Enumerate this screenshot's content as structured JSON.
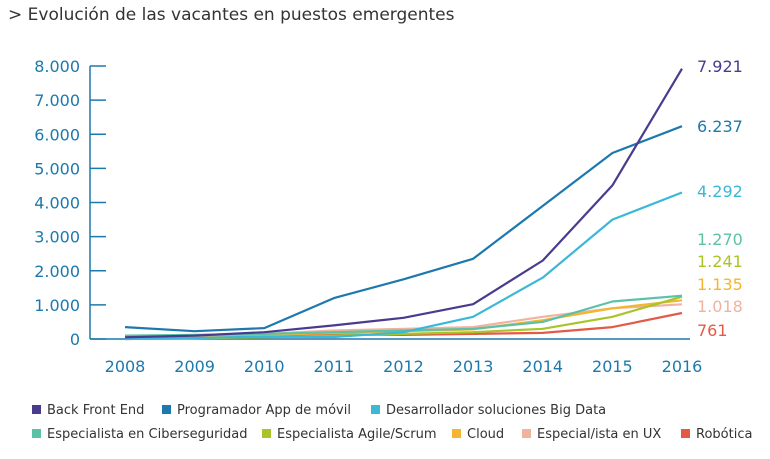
{
  "chart_data": {
    "type": "line",
    "title": "> Evolución de las vacantes en puestos emergentes",
    "x": [
      "2008",
      "2009",
      "2010",
      "2011",
      "2012",
      "2013",
      "2014",
      "2015",
      "2016"
    ],
    "ylim": [
      0,
      8000
    ],
    "yticks": [
      0,
      1000,
      2000,
      3000,
      4000,
      5000,
      6000,
      7000,
      8000
    ],
    "ytick_labels": [
      "0",
      "1.000",
      "2.000",
      "3.000",
      "4.000",
      "5.000",
      "6.000",
      "7.000",
      "8.000"
    ],
    "legend_position": "bottom",
    "series": [
      {
        "name": "Back Front End",
        "color": "#4a3b8f",
        "end_label": "7.921",
        "values": [
          50,
          100,
          200,
          400,
          620,
          1020,
          2300,
          4500,
          7921
        ]
      },
      {
        "name": "Programador App de móvil",
        "color": "#1d79ad",
        "end_label": "6.237",
        "values": [
          350,
          230,
          320,
          1200,
          1750,
          2350,
          3900,
          5450,
          6237
        ]
      },
      {
        "name": "Desarrollador soluciones Big Data",
        "color": "#3bb8d6",
        "end_label": "4.292",
        "values": [
          0,
          30,
          70,
          60,
          200,
          650,
          1800,
          3500,
          4292
        ]
      },
      {
        "name": "Especialista en Ciberseguridad",
        "color": "#5bc2a8",
        "end_label": "1.270",
        "values": [
          100,
          120,
          150,
          200,
          250,
          300,
          500,
          1100,
          1270
        ]
      },
      {
        "name": "Especialista Agile/Scrum",
        "color": "#a8c42a",
        "end_label": "1.241",
        "values": [
          0,
          20,
          50,
          100,
          150,
          200,
          300,
          650,
          1241
        ]
      },
      {
        "name": "Cloud",
        "color": "#f5b52e",
        "end_label": "1.135",
        "values": [
          80,
          100,
          120,
          180,
          230,
          280,
          550,
          900,
          1135
        ]
      },
      {
        "name": "Especial/ista en UX",
        "color": "#f0b3a0",
        "end_label": "1.018",
        "values": [
          0,
          50,
          150,
          250,
          300,
          350,
          650,
          900,
          1018
        ]
      },
      {
        "name": "Robótica",
        "color": "#e45a47",
        "end_label": "761",
        "values": [
          30,
          60,
          100,
          130,
          120,
          150,
          180,
          350,
          761
        ]
      }
    ]
  }
}
